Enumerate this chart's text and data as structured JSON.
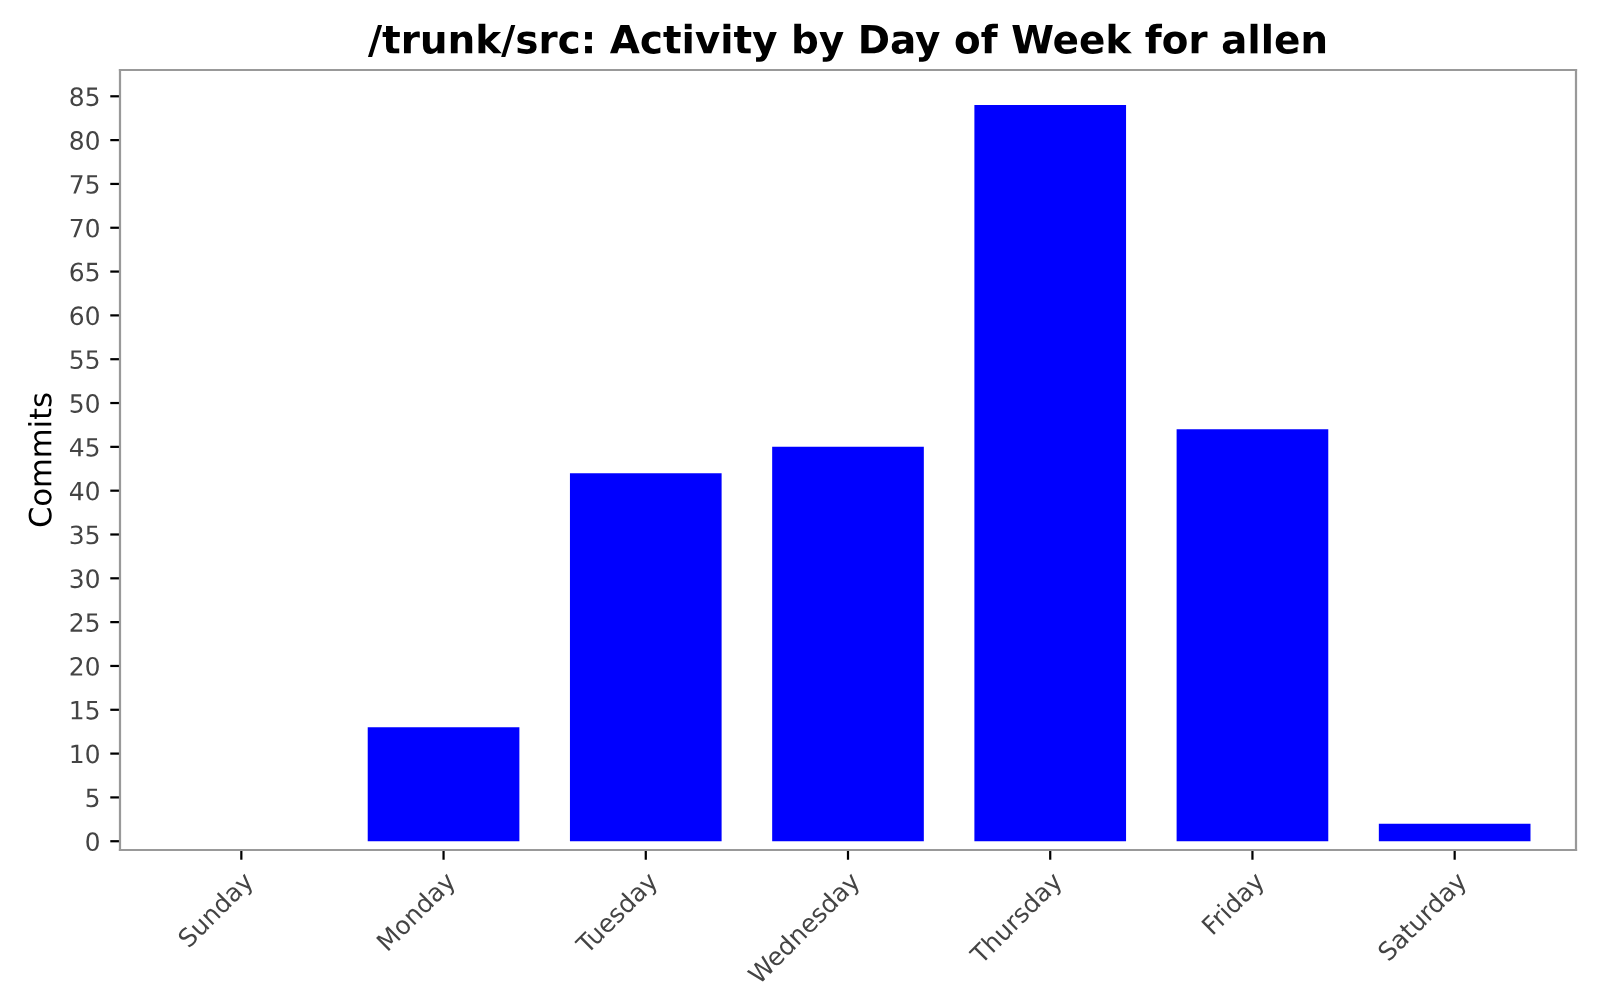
{
  "chart_data": {
    "type": "bar",
    "title": "/trunk/src: Activity by Day of Week for allen",
    "ylabel": "Commits",
    "categories": [
      "Sunday",
      "Monday",
      "Tuesday",
      "Wednesday",
      "Thursday",
      "Friday",
      "Saturday"
    ],
    "values": [
      0,
      13,
      42,
      45,
      84,
      47,
      2
    ],
    "color": "#0000ff",
    "ylim": [
      -1,
      88
    ],
    "yticks": [
      0,
      5,
      10,
      15,
      20,
      25,
      30,
      35,
      40,
      45,
      50,
      55,
      60,
      65,
      70,
      75,
      80,
      85
    ],
    "grid": false
  }
}
